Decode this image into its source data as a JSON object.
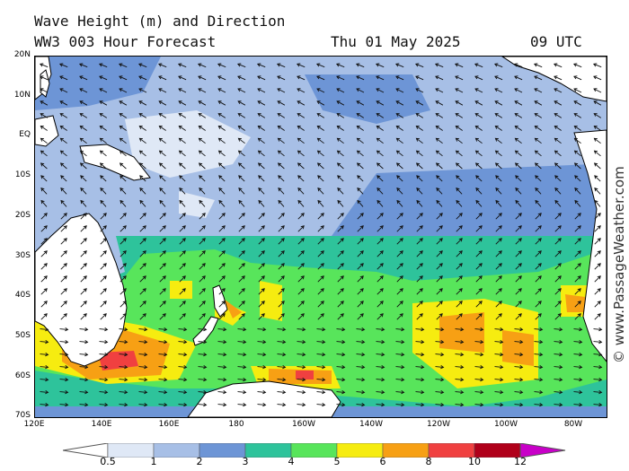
{
  "title": {
    "line1": "Wave Height (m) and Direction",
    "model": "WW3 003 Hour Forecast",
    "date": "Thu 01 May 2025",
    "time": "09 UTC"
  },
  "watermark": "© www.PassageWeather.com",
  "lat_labels": [
    "20N",
    "10N",
    "EQ",
    "10S",
    "20S",
    "30S",
    "40S",
    "50S",
    "60S",
    "70S"
  ],
  "lon_labels": [
    "120E",
    "140E",
    "160E",
    "180",
    "160W",
    "140W",
    "120W",
    "100W",
    "80W"
  ],
  "legend": {
    "labels": [
      "0.5",
      "1",
      "2",
      "3",
      "4",
      "5",
      "6",
      "8",
      "10",
      "12"
    ],
    "colors": [
      "#dfe8f6",
      "#a7bfe6",
      "#6d95d6",
      "#2ec39b",
      "#58e55b",
      "#f6ec10",
      "#f7a014",
      "#f04040",
      "#b0001a",
      "#c800c8"
    ]
  },
  "colors": {
    "land": "#ffffff",
    "ice": "#ffffff",
    "coast": "#000000",
    "arrow": "#111111"
  }
}
